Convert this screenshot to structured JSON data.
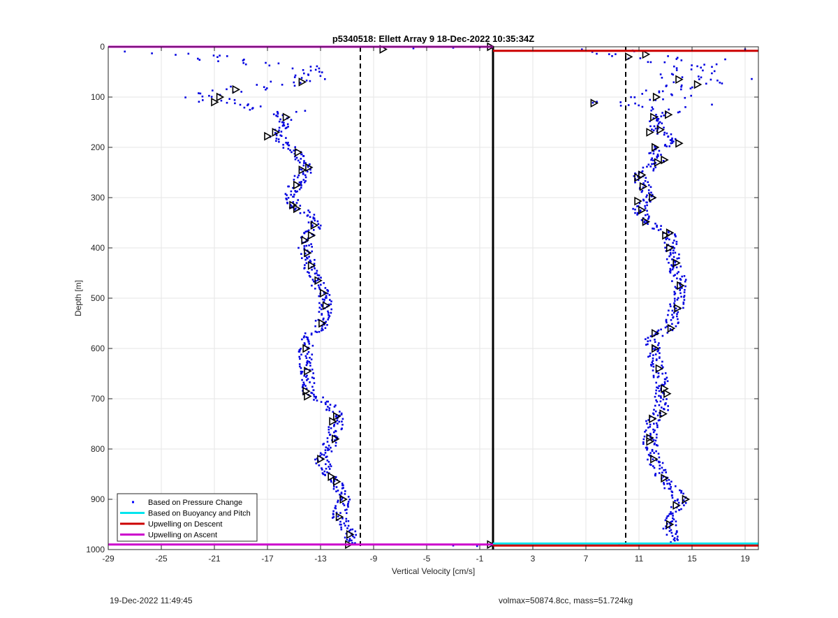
{
  "chart_data": {
    "type": "scatter",
    "title": "p5340518: Ellett Array 9 18-Dec-2022 10:35:34Z",
    "xlabel": "Vertical Velocity [cm/s]",
    "ylabel": "Depth [m]",
    "xlim": [
      -29,
      20
    ],
    "ylim": [
      0,
      1000
    ],
    "y_reversed": true,
    "xticks": [
      -29,
      -25,
      -21,
      -17,
      -13,
      -9,
      -5,
      -1,
      3,
      7,
      11,
      15,
      19
    ],
    "yticks": [
      0,
      100,
      200,
      300,
      400,
      500,
      600,
      700,
      800,
      900,
      1000
    ],
    "grid": true,
    "legend_position": "bottom-left",
    "legend": [
      {
        "label": "Based on Pressure Change",
        "color": "#0000ff",
        "style": "dot"
      },
      {
        "label": "Based on Buoyancy and Pitch",
        "color": "#00e5ee",
        "style": "line"
      },
      {
        "label": "Upwelling on Descent",
        "color": "#cc0000",
        "style": "line"
      },
      {
        "label": "Upwelling on Ascent",
        "color": "#cc00cc",
        "style": "line"
      }
    ],
    "reference_lines": {
      "zero_line_x": 0,
      "dashed_x": [
        -10,
        10
      ]
    },
    "horizontal_lines": [
      {
        "series": "Upwelling on Ascent",
        "y": 0,
        "x_from": -29,
        "x_to": 0,
        "color": "#cc00cc"
      },
      {
        "series": "Upwelling on Descent",
        "y": 8,
        "x_from": 0,
        "x_to": 20,
        "color": "#cc0000"
      },
      {
        "series": "Upwelling on Ascent",
        "y": 990,
        "x_from": -29,
        "x_to": 0,
        "color": "#cc00cc"
      },
      {
        "series": "Based on Buoyancy and Pitch",
        "y": 988,
        "x_from": 0,
        "x_to": 20,
        "color": "#00e5ee"
      },
      {
        "series": "Upwelling on Descent",
        "y": 992,
        "x_from": 0,
        "x_to": 20,
        "color": "#cc0000"
      }
    ],
    "ascent_profile": [
      {
        "depth": 10,
        "v": -28.5
      },
      {
        "depth": 12,
        "v": -25.8
      },
      {
        "depth": 14,
        "v": -22.5
      },
      {
        "depth": 30,
        "v": -19.5
      },
      {
        "depth": 40,
        "v": -15.0
      },
      {
        "depth": 55,
        "v": -13.5
      },
      {
        "depth": 70,
        "v": -14.5
      },
      {
        "depth": 85,
        "v": -19.5
      },
      {
        "depth": 100,
        "v": -20.8
      },
      {
        "depth": 110,
        "v": -21.0
      },
      {
        "depth": 125,
        "v": -16.5
      },
      {
        "depth": 140,
        "v": -15.8
      },
      {
        "depth": 155,
        "v": -15.5
      },
      {
        "depth": 175,
        "v": -16.5
      },
      {
        "depth": 190,
        "v": -15.8
      },
      {
        "depth": 210,
        "v": -14.8
      },
      {
        "depth": 240,
        "v": -14.0
      },
      {
        "depth": 260,
        "v": -14.5
      },
      {
        "depth": 280,
        "v": -15.0
      },
      {
        "depth": 300,
        "v": -15.2
      },
      {
        "depth": 320,
        "v": -14.8
      },
      {
        "depth": 340,
        "v": -13.5
      },
      {
        "depth": 360,
        "v": -13.5
      },
      {
        "depth": 385,
        "v": -14.3
      },
      {
        "depth": 410,
        "v": -14.0
      },
      {
        "depth": 440,
        "v": -13.8
      },
      {
        "depth": 465,
        "v": -13.3
      },
      {
        "depth": 495,
        "v": -12.8
      },
      {
        "depth": 520,
        "v": -12.6
      },
      {
        "depth": 555,
        "v": -13.0
      },
      {
        "depth": 575,
        "v": -13.8
      },
      {
        "depth": 605,
        "v": -14.1
      },
      {
        "depth": 645,
        "v": -14.0
      },
      {
        "depth": 690,
        "v": -14.0
      },
      {
        "depth": 710,
        "v": -12.2
      },
      {
        "depth": 740,
        "v": -11.8
      },
      {
        "depth": 780,
        "v": -12.0
      },
      {
        "depth": 820,
        "v": -13.0
      },
      {
        "depth": 860,
        "v": -12.0
      },
      {
        "depth": 900,
        "v": -11.3
      },
      {
        "depth": 935,
        "v": -11.6
      },
      {
        "depth": 965,
        "v": -10.8
      },
      {
        "depth": 990,
        "v": -10.8
      }
    ],
    "descent_profile": [
      {
        "depth": 5,
        "v": 8.2
      },
      {
        "depth": 15,
        "v": 10.5
      },
      {
        "depth": 25,
        "v": 13.0
      },
      {
        "depth": 40,
        "v": 16.0
      },
      {
        "depth": 60,
        "v": 14.0
      },
      {
        "depth": 75,
        "v": 15.2
      },
      {
        "depth": 90,
        "v": 13.0
      },
      {
        "depth": 105,
        "v": 12.2
      },
      {
        "depth": 112,
        "v": 7.8
      },
      {
        "depth": 130,
        "v": 13.0
      },
      {
        "depth": 145,
        "v": 12.0
      },
      {
        "depth": 165,
        "v": 12.5
      },
      {
        "depth": 190,
        "v": 13.5
      },
      {
        "depth": 210,
        "v": 12.0
      },
      {
        "depth": 230,
        "v": 12.4
      },
      {
        "depth": 255,
        "v": 11.0
      },
      {
        "depth": 275,
        "v": 11.3
      },
      {
        "depth": 300,
        "v": 11.8
      },
      {
        "depth": 320,
        "v": 11.0
      },
      {
        "depth": 345,
        "v": 11.5
      },
      {
        "depth": 370,
        "v": 13.2
      },
      {
        "depth": 400,
        "v": 13.4
      },
      {
        "depth": 430,
        "v": 13.7
      },
      {
        "depth": 460,
        "v": 14.0
      },
      {
        "depth": 490,
        "v": 14.1
      },
      {
        "depth": 520,
        "v": 13.8
      },
      {
        "depth": 560,
        "v": 13.3
      },
      {
        "depth": 580,
        "v": 12.0
      },
      {
        "depth": 610,
        "v": 12.2
      },
      {
        "depth": 640,
        "v": 12.4
      },
      {
        "depth": 680,
        "v": 12.8
      },
      {
        "depth": 720,
        "v": 12.7
      },
      {
        "depth": 745,
        "v": 12.1
      },
      {
        "depth": 780,
        "v": 11.8
      },
      {
        "depth": 820,
        "v": 12.1
      },
      {
        "depth": 860,
        "v": 12.8
      },
      {
        "depth": 900,
        "v": 14.2
      },
      {
        "depth": 930,
        "v": 13.6
      },
      {
        "depth": 955,
        "v": 13.3
      },
      {
        "depth": 985,
        "v": 13.4
      }
    ],
    "triangle_markers": [
      {
        "depth": 0,
        "v": -0.2
      },
      {
        "depth": 5,
        "v": -8.3
      },
      {
        "depth": 70,
        "v": -14.4
      },
      {
        "depth": 85,
        "v": -19.4
      },
      {
        "depth": 100,
        "v": -20.6
      },
      {
        "depth": 110,
        "v": -21.0
      },
      {
        "depth": 140,
        "v": -15.6
      },
      {
        "depth": 170,
        "v": -16.4
      },
      {
        "depth": 178,
        "v": -17.0
      },
      {
        "depth": 210,
        "v": -14.7
      },
      {
        "depth": 240,
        "v": -13.9
      },
      {
        "depth": 245,
        "v": -14.4
      },
      {
        "depth": 275,
        "v": -14.8
      },
      {
        "depth": 315,
        "v": -15.1
      },
      {
        "depth": 322,
        "v": -14.8
      },
      {
        "depth": 355,
        "v": -13.5
      },
      {
        "depth": 375,
        "v": -13.7
      },
      {
        "depth": 385,
        "v": -14.2
      },
      {
        "depth": 410,
        "v": -14.0
      },
      {
        "depth": 435,
        "v": -13.7
      },
      {
        "depth": 465,
        "v": -13.2
      },
      {
        "depth": 490,
        "v": -12.8
      },
      {
        "depth": 515,
        "v": -12.6
      },
      {
        "depth": 550,
        "v": -12.9
      },
      {
        "depth": 600,
        "v": -14.1
      },
      {
        "depth": 645,
        "v": -14.0
      },
      {
        "depth": 685,
        "v": -14.1
      },
      {
        "depth": 695,
        "v": -14.0
      },
      {
        "depth": 735,
        "v": -11.8
      },
      {
        "depth": 745,
        "v": -12.1
      },
      {
        "depth": 780,
        "v": -11.9
      },
      {
        "depth": 820,
        "v": -13.0
      },
      {
        "depth": 855,
        "v": -12.2
      },
      {
        "depth": 865,
        "v": -11.8
      },
      {
        "depth": 900,
        "v": -11.3
      },
      {
        "depth": 935,
        "v": -11.6
      },
      {
        "depth": 970,
        "v": -10.8
      },
      {
        "depth": 990,
        "v": -10.9
      },
      {
        "depth": 15,
        "v": 11.5
      },
      {
        "depth": 20,
        "v": 10.2
      },
      {
        "depth": 65,
        "v": 14.0
      },
      {
        "depth": 75,
        "v": 15.4
      },
      {
        "depth": 100,
        "v": 12.3
      },
      {
        "depth": 112,
        "v": 7.6
      },
      {
        "depth": 135,
        "v": 13.2
      },
      {
        "depth": 140,
        "v": 12.1
      },
      {
        "depth": 165,
        "v": 12.6
      },
      {
        "depth": 170,
        "v": 11.8
      },
      {
        "depth": 192,
        "v": 14.0
      },
      {
        "depth": 200,
        "v": 12.2
      },
      {
        "depth": 225,
        "v": 12.9
      },
      {
        "depth": 230,
        "v": 12.4
      },
      {
        "depth": 255,
        "v": 11.2
      },
      {
        "depth": 260,
        "v": 10.9
      },
      {
        "depth": 278,
        "v": 11.3
      },
      {
        "depth": 300,
        "v": 12.0
      },
      {
        "depth": 307,
        "v": 10.9
      },
      {
        "depth": 325,
        "v": 11.2
      },
      {
        "depth": 348,
        "v": 11.5
      },
      {
        "depth": 370,
        "v": 13.3
      },
      {
        "depth": 375,
        "v": 13.0
      },
      {
        "depth": 400,
        "v": 13.3
      },
      {
        "depth": 430,
        "v": 13.8
      },
      {
        "depth": 475,
        "v": 14.1
      },
      {
        "depth": 520,
        "v": 13.9
      },
      {
        "depth": 560,
        "v": 13.4
      },
      {
        "depth": 570,
        "v": 12.2
      },
      {
        "depth": 600,
        "v": 12.2
      },
      {
        "depth": 640,
        "v": 12.5
      },
      {
        "depth": 680,
        "v": 12.9
      },
      {
        "depth": 690,
        "v": 13.1
      },
      {
        "depth": 730,
        "v": 12.8
      },
      {
        "depth": 740,
        "v": 12.0
      },
      {
        "depth": 778,
        "v": 11.8
      },
      {
        "depth": 785,
        "v": 11.8
      },
      {
        "depth": 820,
        "v": 12.1
      },
      {
        "depth": 858,
        "v": 12.9
      },
      {
        "depth": 900,
        "v": 14.5
      },
      {
        "depth": 912,
        "v": 13.8
      },
      {
        "depth": 950,
        "v": 13.3
      },
      {
        "depth": 990,
        "v": -0.2
      }
    ]
  },
  "footer": {
    "left_text": "19-Dec-2022 11:49:45",
    "right_text": "volmax=50874.8cc, mass=51.724kg"
  }
}
